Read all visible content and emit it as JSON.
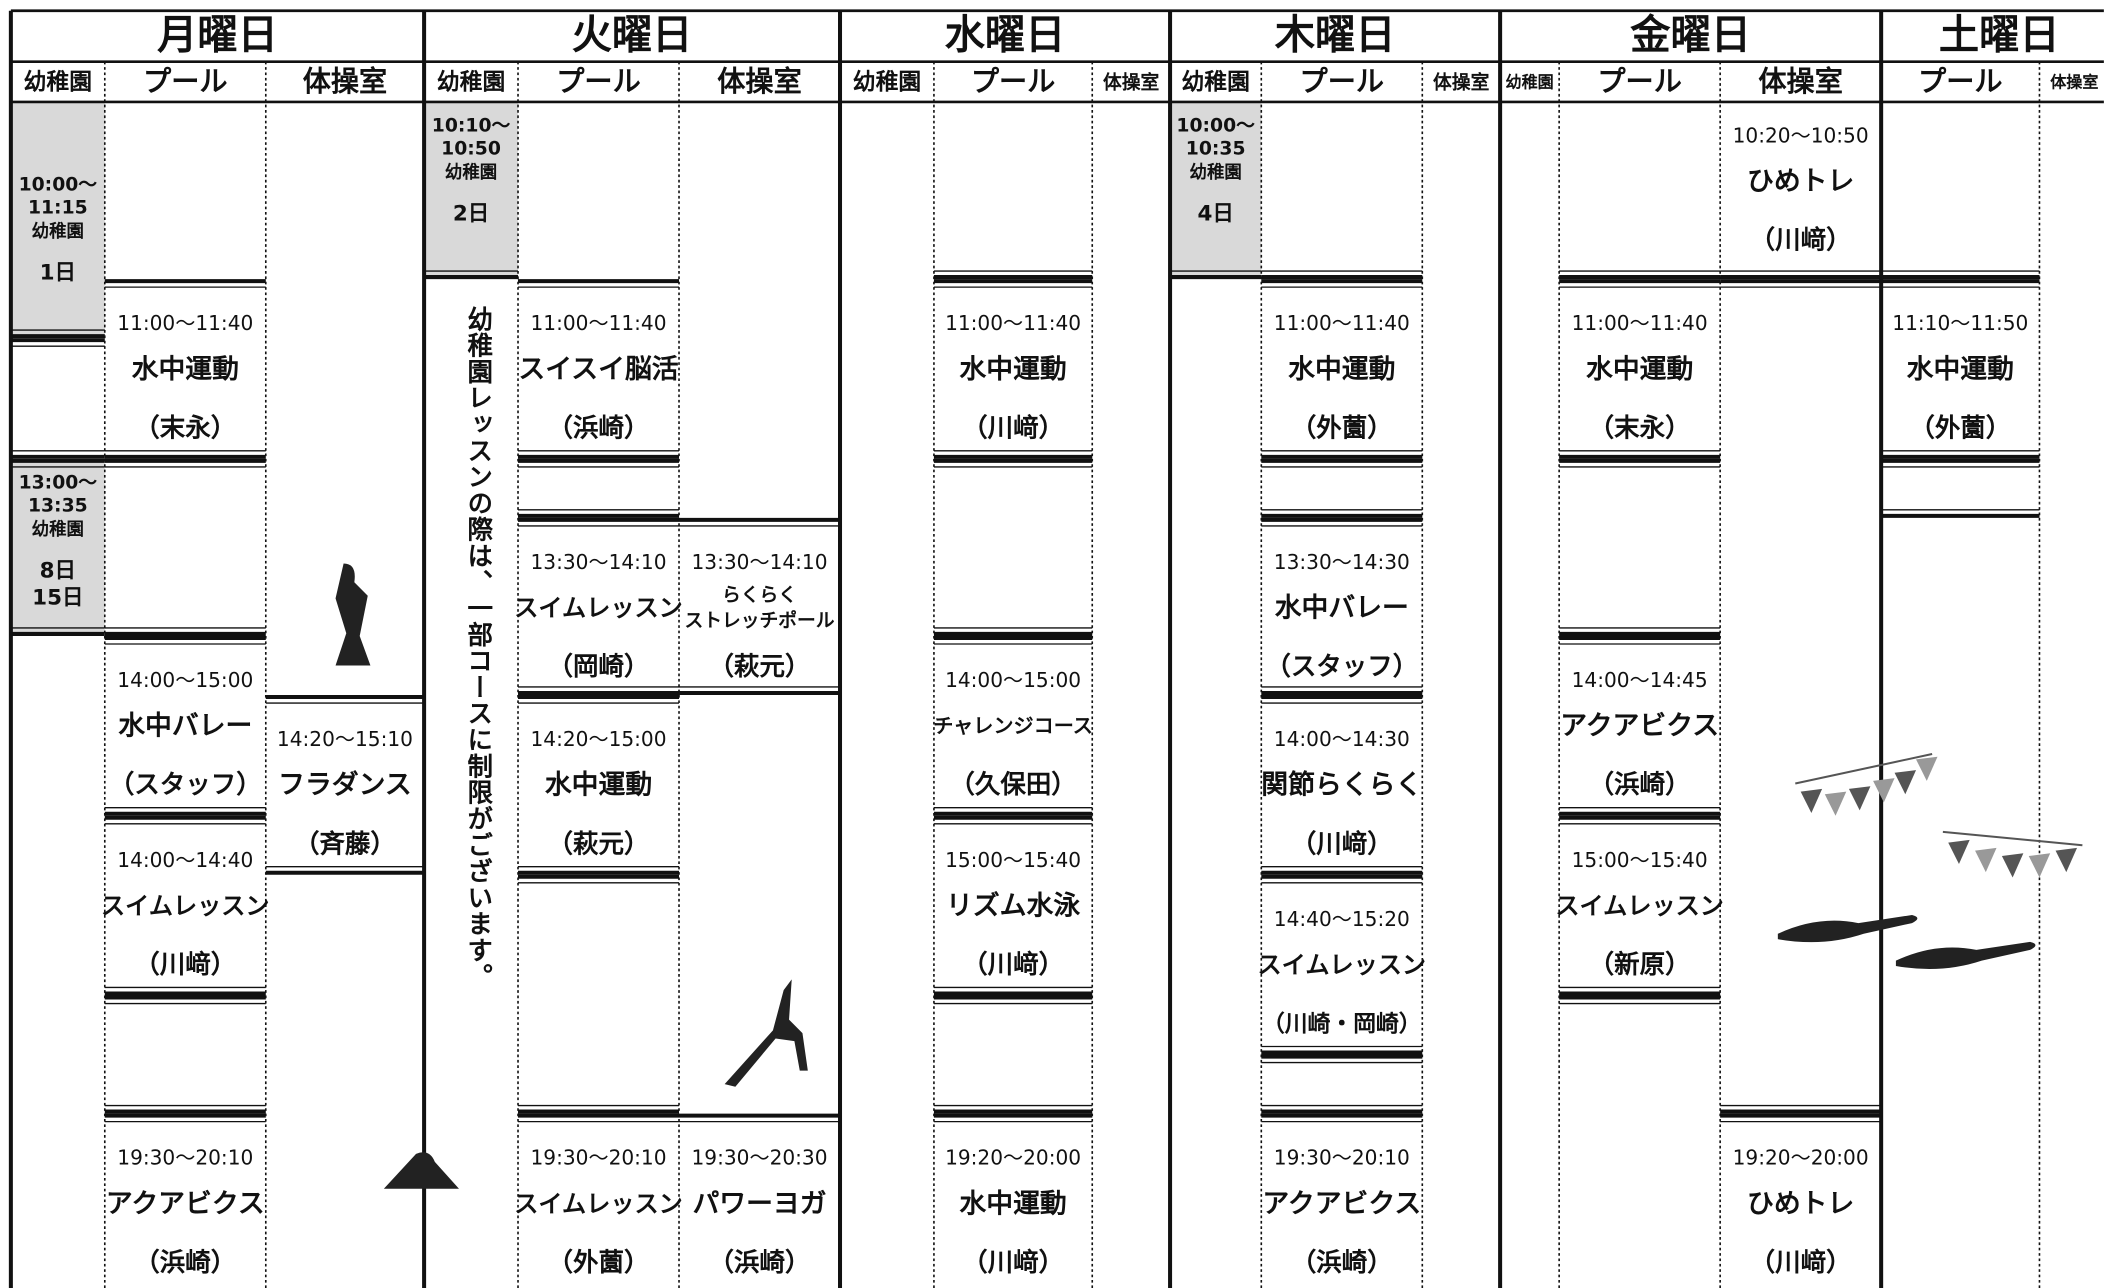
{
  "days": [
    {
      "name": "月曜日",
      "columns": [
        "幼稚園",
        "プール",
        "体操室"
      ]
    },
    {
      "name": "火曜日",
      "columns": [
        "幼稚園",
        "プール",
        "体操室"
      ]
    },
    {
      "name": "水曜日",
      "columns": [
        "幼稚園",
        "プール",
        "体操室"
      ]
    },
    {
      "name": "木曜日",
      "columns": [
        "幼稚園",
        "プール",
        "体操室"
      ]
    },
    {
      "name": "金曜日",
      "columns": [
        "幼稚園",
        "プール",
        "体操室"
      ]
    },
    {
      "name": "土曜日",
      "columns": [
        "プール",
        "体操室"
      ]
    }
  ],
  "notice": "幼稚園レッスンの際は、一部コースに制限がございます。",
  "events": [
    {
      "time_lines": [
        "10:00～",
        "11:15"
      ],
      "label": "幼稚園",
      "dates": [
        "1日"
      ]
    },
    {
      "time_lines": [
        "13:00～",
        "13:35"
      ],
      "label": "幼稚園",
      "dates": [
        "8日",
        "15日"
      ]
    },
    {
      "time": "11:00～11:40",
      "name": "水中運動",
      "instructor": "（末永）"
    },
    {
      "time": "14:00～15:00",
      "name": "水中バレー",
      "instructor": "（スタッフ）"
    },
    {
      "time": "14:00～14:40",
      "name": "スイムレッスン",
      "instructor": "（川﨑）"
    },
    {
      "time": "19:30～20:10",
      "name": "アクアビクス",
      "instructor": "（浜崎）"
    },
    {
      "time": "14:20～15:10",
      "name": "フラダンス",
      "instructor": "（斉藤）"
    },
    {
      "time_lines": [
        "10:10～",
        "10:50"
      ],
      "label": "幼稚園",
      "dates": [
        "2日"
      ]
    },
    {
      "time": "11:00～11:40",
      "name": "スイスイ脳活",
      "instructor": "（浜崎）"
    },
    {
      "time": "13:30～14:10",
      "name": "スイムレッスン",
      "instructor": "（岡崎）"
    },
    {
      "time": "13:30～14:10",
      "name_lines": [
        "らくらく",
        "ストレッチポール"
      ],
      "instructor": "（萩元）"
    },
    {
      "time": "14:20～15:00",
      "name": "水中運動",
      "instructor": "（萩元）"
    },
    {
      "time": "19:30～20:10",
      "name": "スイムレッスン",
      "instructor": "（外薗）"
    },
    {
      "time": "19:30～20:30",
      "name": "パワーヨガ",
      "instructor": "（浜崎）"
    },
    {
      "time": "11:00～11:40",
      "name": "水中運動",
      "instructor": "（川﨑）"
    },
    {
      "time": "14:00～15:00",
      "name": "チャレンジコース",
      "instructor": "（久保田）"
    },
    {
      "time": "15:00～15:40",
      "name": "リズム水泳",
      "instructor": "（川﨑）"
    },
    {
      "time": "19:20～20:00",
      "name": "水中運動",
      "instructor": "（川﨑）"
    },
    {
      "time_lines": [
        "10:00～",
        "10:35"
      ],
      "label": "幼稚園",
      "dates": [
        "4日"
      ]
    },
    {
      "time": "11:00～11:40",
      "name": "水中運動",
      "instructor": "（外薗）"
    },
    {
      "time": "13:30～14:30",
      "name": "水中バレー",
      "instructor": "（スタッフ）"
    },
    {
      "time": "14:00～14:30",
      "name": "関節らくらく",
      "instructor": "（川﨑）"
    },
    {
      "time": "14:40～15:20",
      "name": "スイムレッスン",
      "instructor": "（川崎・岡崎）"
    },
    {
      "time": "19:30～20:10",
      "name": "アクアビクス",
      "instructor": "（浜崎）"
    },
    {
      "time": "10:20～10:50",
      "name": "ひめトレ",
      "instructor": "（川﨑）"
    },
    {
      "time": "11:00～11:40",
      "name": "水中運動",
      "instructor": "（末永）"
    },
    {
      "time": "14:00～14:45",
      "name": "アクアビクス",
      "instructor": "（浜崎）"
    },
    {
      "time": "15:00～15:40",
      "name": "スイムレッスン",
      "instructor": "（新原）"
    },
    {
      "time": "19:20～20:00",
      "name": "ひめトレ",
      "instructor": "（川﨑）"
    },
    {
      "time": "11:10～11:50",
      "name": "水中運動",
      "instructor": "（外薗）"
    }
  ]
}
